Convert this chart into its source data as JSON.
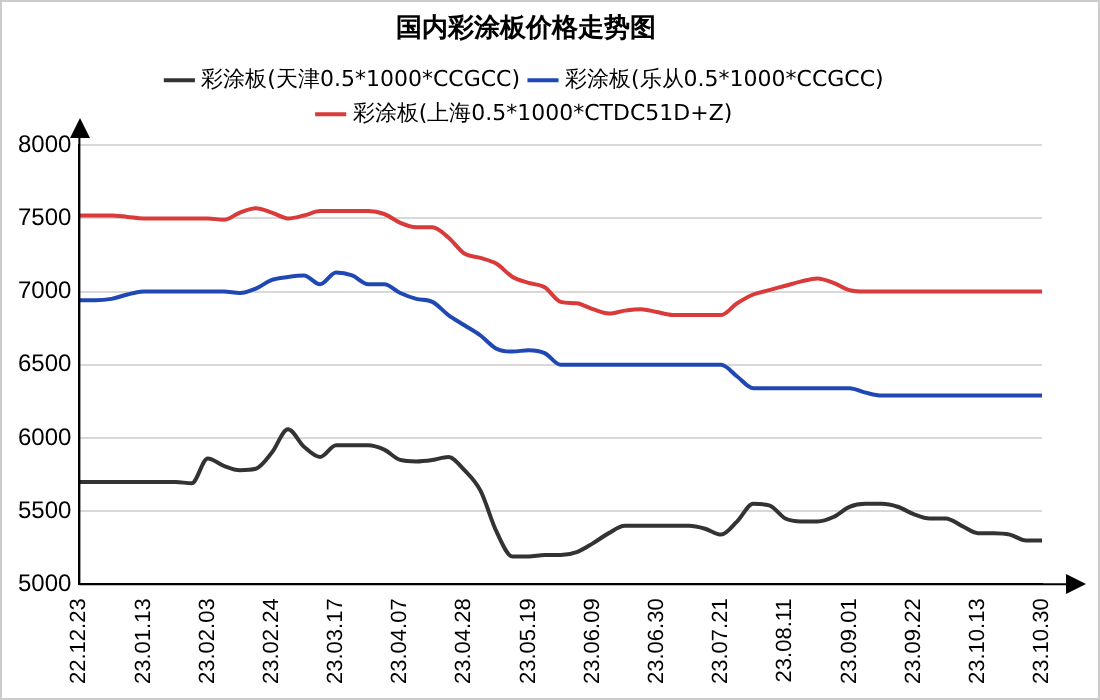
{
  "chart_data": {
    "type": "line",
    "title": "国内彩涂板价格走势图",
    "categories": [
      "22.12.23",
      null,
      null,
      null,
      "23.01.13",
      null,
      null,
      null,
      "23.02.03",
      null,
      null,
      null,
      "23.02.24",
      null,
      null,
      null,
      "23.03.17",
      null,
      null,
      null,
      "23.04.07",
      null,
      null,
      null,
      "23.04.28",
      null,
      null,
      null,
      "23.05.19",
      null,
      null,
      null,
      "23.06.09",
      null,
      null,
      null,
      "23.06.30",
      null,
      null,
      null,
      "23.07.21",
      null,
      null,
      null,
      "23.08.11",
      null,
      null,
      null,
      "23.09.01",
      null,
      null,
      null,
      "23.09.22",
      null,
      null,
      null,
      "23.10.13",
      null,
      null,
      null,
      "23.10.30"
    ],
    "series": [
      {
        "name": "彩涂板(天津0.5*1000*CCGCC)",
        "color": "#333333",
        "values": [
          5700,
          5700,
          5700,
          5700,
          5700,
          5700,
          5700,
          5690,
          5860,
          5810,
          5780,
          5790,
          5900,
          6060,
          5940,
          5870,
          5950,
          5950,
          5950,
          5920,
          5850,
          5840,
          5850,
          5870,
          5780,
          5640,
          5360,
          5190,
          5190,
          5200,
          5200,
          5220,
          5280,
          5350,
          5400,
          5400,
          5400,
          5400,
          5400,
          5380,
          5340,
          5430,
          5550,
          5540,
          5450,
          5430,
          5430,
          5460,
          5530,
          5550,
          5550,
          5530,
          5480,
          5450,
          5450,
          5400,
          5350,
          5350,
          5340,
          5300,
          5300
        ]
      },
      {
        "name": "彩涂板(乐从0.5*1000*CCGCC)",
        "color": "#1f48b4",
        "values": [
          6940,
          6940,
          6950,
          6980,
          7000,
          7000,
          7000,
          7000,
          7000,
          7000,
          6990,
          7020,
          7080,
          7100,
          7110,
          7050,
          7130,
          7110,
          7050,
          7050,
          6990,
          6950,
          6930,
          6840,
          6770,
          6700,
          6610,
          6590,
          6600,
          6580,
          6500,
          6500,
          6500,
          6500,
          6500,
          6500,
          6500,
          6500,
          6500,
          6500,
          6500,
          6420,
          6340,
          6340,
          6340,
          6340,
          6340,
          6340,
          6340,
          6310,
          6290,
          6290,
          6290,
          6290,
          6290,
          6290,
          6290,
          6290,
          6290,
          6290,
          6290
        ]
      },
      {
        "name": "彩涂板(上海0.5*1000*CTDC51D+Z)",
        "color": "#d93a3a",
        "values": [
          7520,
          7520,
          7520,
          7510,
          7500,
          7500,
          7500,
          7500,
          7500,
          7490,
          7540,
          7570,
          7540,
          7500,
          7520,
          7550,
          7550,
          7550,
          7550,
          7530,
          7470,
          7440,
          7440,
          7370,
          7260,
          7230,
          7190,
          7100,
          7060,
          7030,
          6930,
          6920,
          6880,
          6850,
          6870,
          6880,
          6860,
          6840,
          6840,
          6840,
          6840,
          6920,
          6980,
          7010,
          7040,
          7070,
          7090,
          7060,
          7010,
          7000,
          7000,
          7000,
          7000,
          7000,
          7000,
          7000,
          7000,
          7000,
          7000,
          7000,
          7000
        ]
      }
    ],
    "ylim": [
      5000,
      8000
    ],
    "yticks": [
      5000,
      5500,
      6000,
      6500,
      7000,
      7500,
      8000
    ],
    "grid": "y",
    "legend": "top",
    "marker": "none",
    "line_style": "solid"
  }
}
